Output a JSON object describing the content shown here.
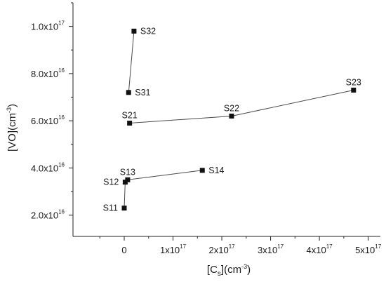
{
  "chart_data": {
    "type": "scatter",
    "title": "",
    "xlabel": {
      "main": "[C",
      "sub": "s",
      "rest": "](cm",
      "sup": "-3",
      "end": ")"
    },
    "ylabel": {
      "main": "[VO](cm",
      "sup": "-3",
      "end": ")"
    },
    "xlim": [
      -1.05e+17,
      5.25e+17
    ],
    "ylim": [
      1.1e+16,
      1.1e+17
    ],
    "grid": false,
    "xticks": [
      {
        "value": 0,
        "base": "0",
        "exp": ""
      },
      {
        "value": 1e+17,
        "base": "1x10",
        "exp": "17"
      },
      {
        "value": 2e+17,
        "base": "2x10",
        "exp": "17"
      },
      {
        "value": 3e+17,
        "base": "3x10",
        "exp": "17"
      },
      {
        "value": 4e+17,
        "base": "4x10",
        "exp": "17"
      },
      {
        "value": 5e+17,
        "base": "5x10",
        "exp": "17"
      }
    ],
    "yticks": [
      {
        "value": 2e+16,
        "base": "2.0x10",
        "exp": "16"
      },
      {
        "value": 4e+16,
        "base": "4.0x10",
        "exp": "16"
      },
      {
        "value": 6e+16,
        "base": "6.0x10",
        "exp": "16"
      },
      {
        "value": 8e+16,
        "base": "8.0x10",
        "exp": "16"
      },
      {
        "value": 1e+17,
        "base": "1.0x10",
        "exp": "17"
      }
    ],
    "series": [
      {
        "points": [
          {
            "label": "S11",
            "x": 0.0,
            "y": 2.3e+16,
            "label_side": "left"
          },
          {
            "label": "S12",
            "x": 2000000000000000.0,
            "y": 3.4e+16,
            "label_side": "left"
          },
          {
            "label": "S13",
            "x": 7000000000000000.0,
            "y": 3.5e+16,
            "label_side": "above"
          },
          {
            "label": "S14",
            "x": 1.6e+17,
            "y": 3.9e+16,
            "label_side": "right"
          }
        ]
      },
      {
        "points": [
          {
            "label": "S21",
            "x": 1.1e+16,
            "y": 5.9e+16,
            "label_side": "above"
          },
          {
            "label": "S22",
            "x": 2.2e+17,
            "y": 6.2e+16,
            "label_side": "above"
          },
          {
            "label": "S23",
            "x": 4.7e+17,
            "y": 7.3e+16,
            "label_side": "above"
          }
        ]
      },
      {
        "points": [
          {
            "label": "S31",
            "x": 9000000000000000.0,
            "y": 7.2e+16,
            "label_side": "right"
          },
          {
            "label": "S32",
            "x": 2e+16,
            "y": 9.8e+16,
            "label_side": "right"
          }
        ]
      }
    ],
    "marker": "square",
    "line_color": "#4a4a4a",
    "marker_color": "#111111"
  }
}
